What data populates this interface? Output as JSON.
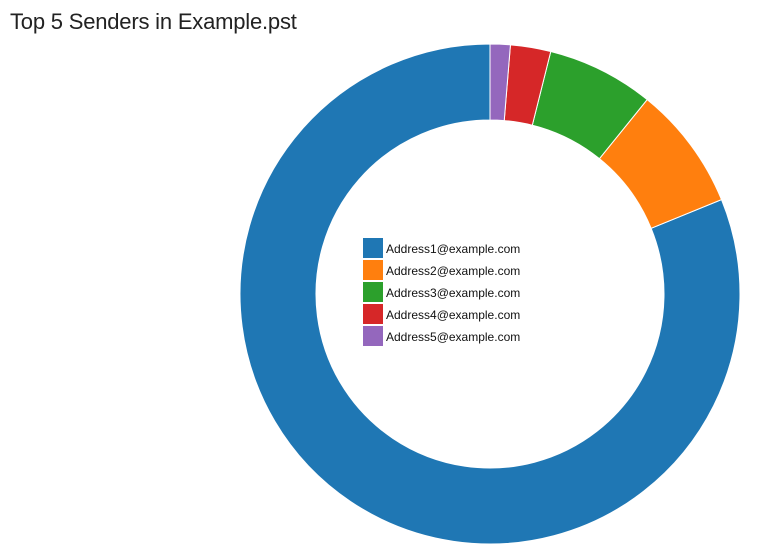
{
  "chart_data": {
    "type": "pie",
    "title": "Top 5 Senders in Example.pst",
    "labels": [
      "Address1@example.com",
      "Address2@example.com",
      "Address3@example.com",
      "Address4@example.com",
      "Address5@example.com"
    ],
    "values": [
      81.0,
      8.0,
      6.9,
      2.6,
      1.3
    ],
    "colors": [
      "#1f77b4",
      "#ff7f0e",
      "#2ca02c",
      "#d62728",
      "#9467bd"
    ],
    "donut": true,
    "legend_position": "center"
  }
}
